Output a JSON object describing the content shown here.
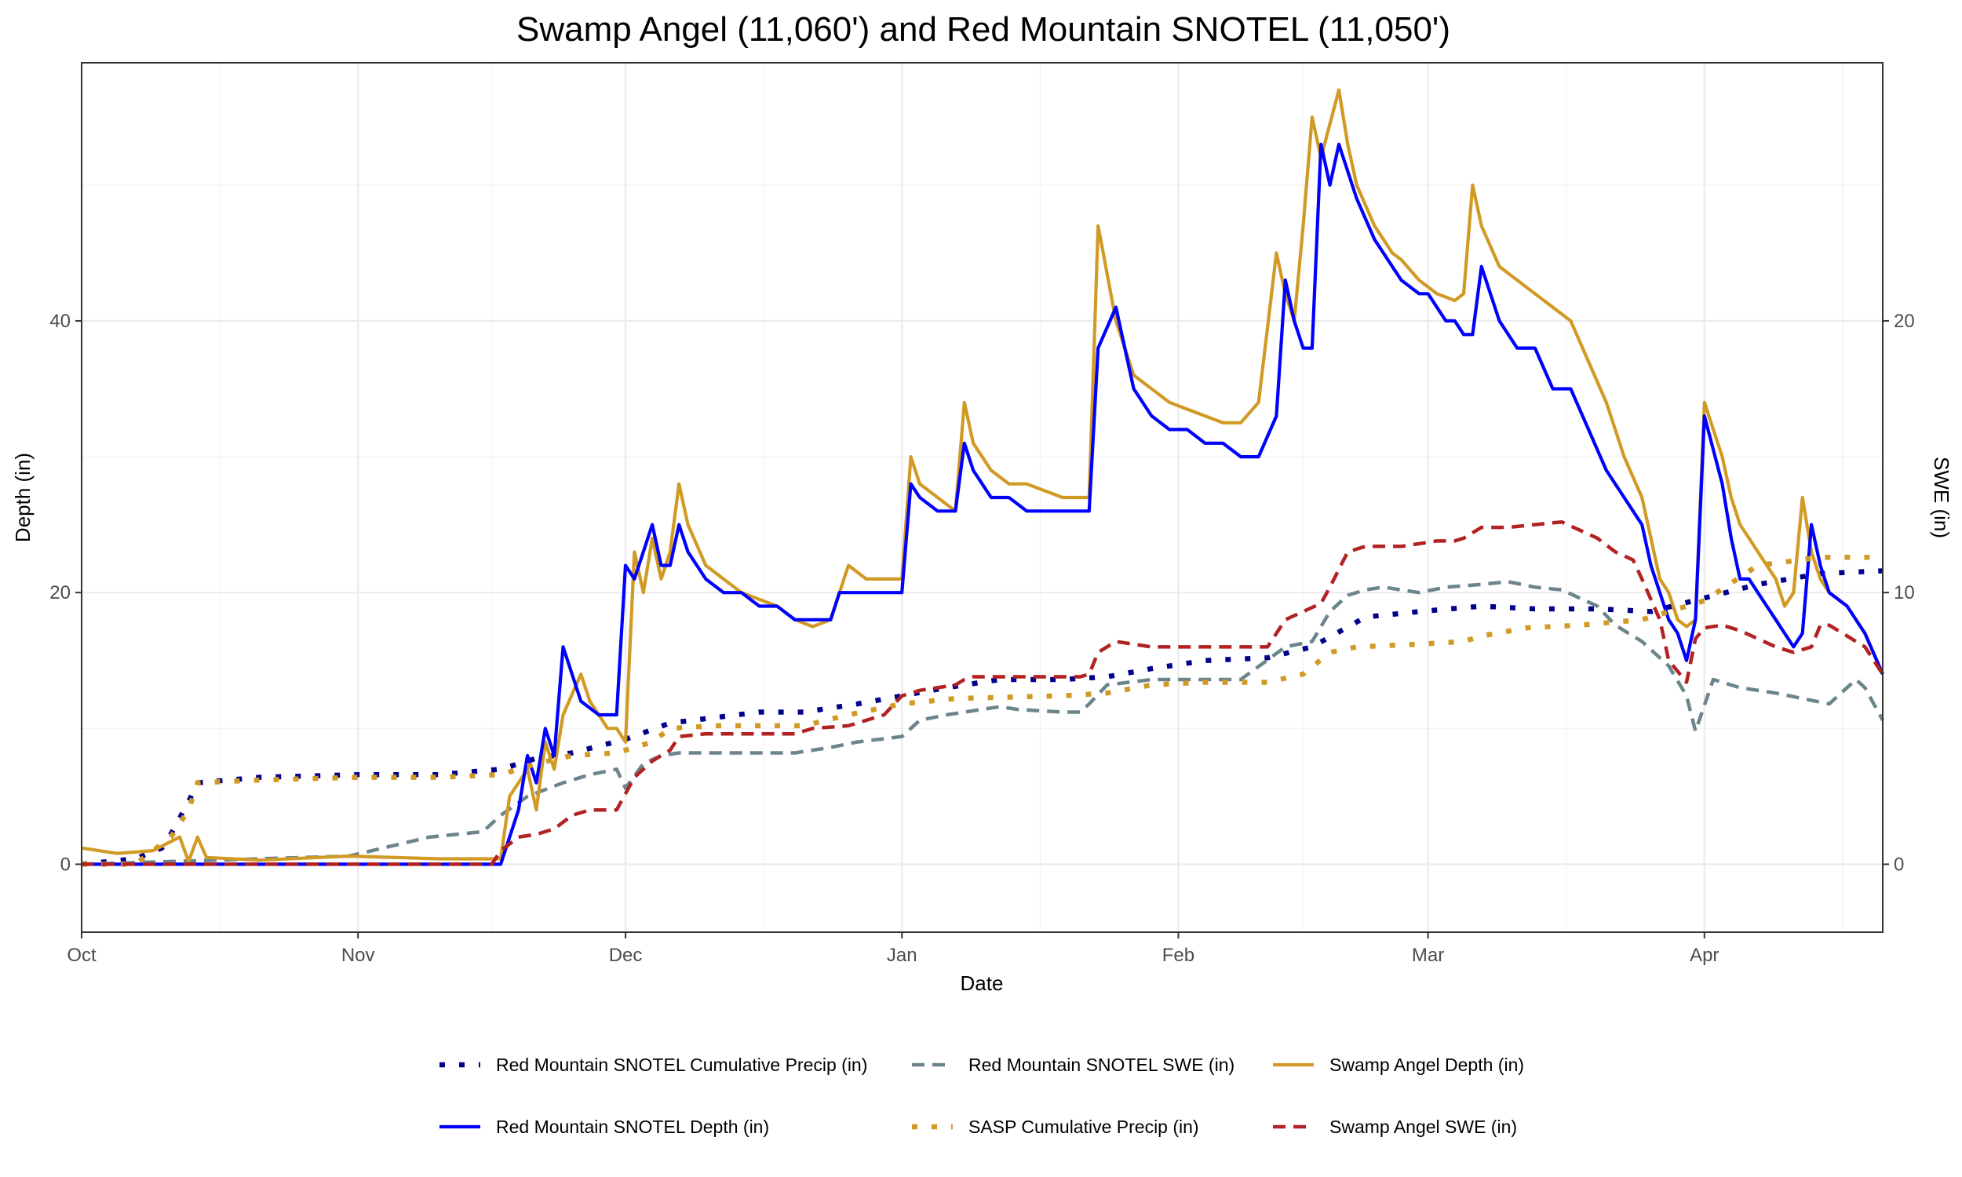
{
  "chart_data": {
    "type": "line",
    "title": "Swamp Angel (11,060') and Red Mountain SNOTEL (11,050')",
    "xlabel": "Date",
    "ylabel_left": "Depth (in)",
    "ylabel_right": "SWE (in)",
    "x_unit": "days since Oct 1",
    "xlim": [
      0,
      202
    ],
    "ylim_left": [
      -5,
      59
    ],
    "ylim_right": [
      -2.5,
      29.5
    ],
    "grid": true,
    "legend_position": "bottom",
    "x_ticks": [
      {
        "label": "Oct",
        "value": 0
      },
      {
        "label": "Nov",
        "value": 31
      },
      {
        "label": "Dec",
        "value": 61
      },
      {
        "label": "Jan",
        "value": 92
      },
      {
        "label": "Feb",
        "value": 123
      },
      {
        "label": "Mar",
        "value": 151
      },
      {
        "label": "Apr",
        "value": 182
      }
    ],
    "y_ticks_left": [
      {
        "label": "0",
        "value": 0
      },
      {
        "label": "20",
        "value": 20
      },
      {
        "label": "40",
        "value": 40
      }
    ],
    "y_ticks_right": [
      {
        "label": "0",
        "value": 0
      },
      {
        "label": "10",
        "value": 10
      },
      {
        "label": "20",
        "value": 20
      }
    ],
    "series": [
      {
        "name": "Red Mountain SNOTEL Cumulative Precip (in)",
        "axis": "right",
        "color": "#00008b",
        "dash": "dotted",
        "x": [
          0,
          6,
          9,
          10,
          12,
          13,
          20,
          31,
          40,
          47,
          51,
          55,
          61,
          66,
          71,
          76,
          81,
          87,
          92,
          97,
          103,
          110,
          115,
          120,
          126,
          133,
          138,
          144,
          150,
          157,
          163,
          170,
          176,
          182,
          188,
          195,
          202
        ],
        "y": [
          0,
          0.2,
          0.6,
          1.1,
          2.3,
          3.0,
          3.2,
          3.3,
          3.3,
          3.5,
          3.9,
          4.1,
          4.6,
          5.2,
          5.4,
          5.6,
          5.6,
          5.9,
          6.2,
          6.5,
          6.8,
          6.8,
          6.9,
          7.2,
          7.5,
          7.6,
          8.0,
          9.1,
          9.3,
          9.5,
          9.4,
          9.4,
          9.3,
          9.8,
          10.3,
          10.7,
          10.8
        ]
      },
      {
        "name": "Red Mountain SNOTEL SWE (in)",
        "axis": "right",
        "color": "#6c858c",
        "dash": "dashed",
        "x": [
          0,
          30,
          39,
          45,
          47,
          50,
          54,
          57,
          60,
          61,
          63,
          65,
          67,
          80,
          84,
          87,
          92,
          94,
          97,
          103,
          105,
          110,
          112,
          113,
          115,
          120,
          130,
          135,
          138,
          140,
          142,
          144,
          146,
          150,
          153,
          157,
          160,
          163,
          166,
          170,
          172,
          175,
          178,
          180,
          181,
          183,
          186,
          190,
          196,
          199,
          200,
          202
        ],
        "y": [
          0,
          0.3,
          1.0,
          1.2,
          1.8,
          2.5,
          3.0,
          3.3,
          3.5,
          2.8,
          3.7,
          4.0,
          4.1,
          4.1,
          4.3,
          4.5,
          4.7,
          5.3,
          5.5,
          5.8,
          5.7,
          5.6,
          5.6,
          5.9,
          6.6,
          6.8,
          6.8,
          8.0,
          8.2,
          9.3,
          9.9,
          10.1,
          10.2,
          10.0,
          10.2,
          10.3,
          10.4,
          10.2,
          10.1,
          9.5,
          8.8,
          8.2,
          7.3,
          6.2,
          4.9,
          6.8,
          6.5,
          6.3,
          5.9,
          6.8,
          6.5,
          5.3
        ]
      },
      {
        "name": "Swamp Angel Depth (in)",
        "axis": "left",
        "color": "#d19a25",
        "dash": "solid",
        "x": [
          0,
          4,
          8,
          11,
          12,
          13,
          14,
          20,
          30,
          40,
          47,
          48,
          50,
          51,
          52,
          53,
          54,
          56,
          57,
          59,
          60,
          61,
          62,
          63,
          64,
          65,
          66,
          67,
          68,
          70,
          72,
          74,
          76,
          78,
          80,
          82,
          84,
          85,
          86,
          88,
          90,
          92,
          93,
          94,
          96,
          98,
          99,
          100,
          102,
          104,
          106,
          108,
          110,
          112,
          113,
          114,
          116,
          118,
          120,
          122,
          124,
          126,
          128,
          130,
          132,
          134,
          135,
          136,
          137,
          138,
          139,
          141,
          142,
          143,
          145,
          147,
          148,
          150,
          152,
          154,
          155,
          156,
          157,
          159,
          161,
          163,
          165,
          167,
          169,
          171,
          173,
          175,
          176,
          177,
          178,
          179,
          180,
          181,
          182,
          184,
          185,
          186,
          187,
          188,
          189,
          190,
          191,
          192,
          193,
          194,
          195,
          196,
          198,
          200,
          202
        ],
        "y": [
          1.2,
          0.8,
          1.0,
          2.0,
          0.2,
          2.0,
          0.5,
          0.3,
          0.6,
          0.4,
          0.4,
          5,
          7,
          4,
          9,
          7,
          11,
          14,
          12,
          10,
          10,
          9,
          23,
          20,
          24,
          21,
          23,
          28,
          25,
          22,
          21,
          20,
          19.5,
          19,
          18,
          17.5,
          18,
          20,
          22,
          21,
          21,
          21,
          30,
          28,
          27,
          26,
          34,
          31,
          29,
          28,
          28,
          27.5,
          27,
          27,
          27,
          47,
          40,
          36,
          35,
          34,
          33.5,
          33,
          32.5,
          32.5,
          34,
          45,
          42,
          40,
          47,
          55,
          52,
          57,
          53,
          50,
          47,
          45,
          44.5,
          43,
          42,
          41.5,
          42,
          50,
          47,
          44,
          43,
          42,
          41,
          40,
          37,
          34,
          30,
          27,
          24,
          21,
          20,
          18,
          17.5,
          18,
          34,
          30,
          27,
          25,
          24,
          23,
          22,
          21,
          19,
          20,
          27,
          23,
          21,
          20,
          19,
          17,
          14
        ]
      },
      {
        "name": "Red Mountain SNOTEL Depth (in)",
        "axis": "left",
        "color": "#0000ff",
        "dash": "solid",
        "x": [
          0,
          20,
          40,
          46,
          47,
          49,
          50,
          51,
          52,
          53,
          54,
          55,
          56,
          58,
          59,
          60,
          61,
          62,
          64,
          65,
          66,
          67,
          68,
          70,
          72,
          74,
          76,
          78,
          80,
          82,
          84,
          85,
          88,
          92,
          93,
          94,
          96,
          98,
          99,
          100,
          102,
          104,
          106,
          108,
          110,
          113,
          114,
          116,
          118,
          120,
          122,
          124,
          126,
          128,
          130,
          132,
          134,
          135,
          136,
          137,
          138,
          139,
          140,
          141,
          143,
          145,
          147,
          148,
          150,
          151,
          153,
          154,
          155,
          156,
          157,
          159,
          161,
          163,
          165,
          167,
          169,
          171,
          173,
          175,
          176,
          177,
          178,
          179,
          180,
          181,
          182,
          184,
          185,
          186,
          187,
          188,
          189,
          190,
          191,
          192,
          193,
          194,
          195,
          196,
          198,
          200,
          202
        ],
        "y": [
          0,
          0,
          0,
          0,
          0,
          4,
          8,
          6,
          10,
          8,
          16,
          14,
          12,
          11,
          11,
          11,
          22,
          21,
          25,
          22,
          22,
          25,
          23,
          21,
          20,
          20,
          19,
          19,
          18,
          18,
          18,
          20,
          20,
          20,
          28,
          27,
          26,
          26,
          31,
          29,
          27,
          27,
          26,
          26,
          26,
          26,
          38,
          41,
          35,
          33,
          32,
          32,
          31,
          31,
          30,
          30,
          33,
          43,
          40,
          38,
          38,
          53,
          50,
          53,
          49,
          46,
          44,
          43,
          42,
          42,
          40,
          40,
          39,
          39,
          44,
          40,
          38,
          38,
          35,
          35,
          32,
          29,
          27,
          25,
          22,
          20,
          18,
          17,
          15,
          18,
          33,
          28,
          24,
          21,
          21,
          20,
          19,
          18,
          17,
          16,
          17,
          25,
          22,
          20,
          19,
          17,
          14
        ]
      },
      {
        "name": "SASP Cumulative Precip (in)",
        "axis": "right",
        "color": "#d19a25",
        "dash": "dotted",
        "x": [
          0,
          6,
          10,
          12,
          13,
          20,
          31,
          40,
          47,
          51,
          55,
          60,
          64,
          66,
          71,
          81,
          86,
          92,
          98,
          110,
          115,
          120,
          126,
          133,
          137,
          140,
          143,
          150,
          155,
          157,
          162,
          168,
          175,
          182,
          188,
          195,
          202
        ],
        "y": [
          0,
          0,
          1.0,
          2.0,
          3.0,
          3.1,
          3.2,
          3.2,
          3.3,
          3.7,
          4.0,
          4.1,
          4.5,
          5.0,
          5.1,
          5.1,
          5.5,
          5.9,
          6.1,
          6.2,
          6.3,
          6.6,
          6.7,
          6.7,
          7.0,
          7.8,
          8.0,
          8.1,
          8.2,
          8.4,
          8.7,
          8.8,
          9.0,
          9.7,
          11.0,
          11.3,
          11.3
        ]
      },
      {
        "name": "Swamp Angel SWE (in)",
        "axis": "right",
        "color": "#b22222",
        "dash": "dashed",
        "x": [
          0,
          30,
          46,
          47,
          49,
          51,
          53,
          55,
          57,
          60,
          61,
          62,
          64,
          66,
          67,
          70,
          80,
          82,
          86,
          90,
          92,
          94,
          98,
          99,
          100,
          102,
          108,
          112,
          113,
          114,
          116,
          118,
          120,
          126,
          131,
          133,
          135,
          137,
          139,
          140,
          142,
          144,
          148,
          150,
          152,
          154,
          155,
          157,
          160,
          163,
          166,
          170,
          172,
          174,
          175,
          177,
          178,
          179,
          180,
          181,
          182,
          184,
          186,
          188,
          190,
          192,
          194,
          195,
          196,
          198,
          200,
          202
        ],
        "y": [
          0,
          0,
          0,
          0.5,
          1.0,
          1.1,
          1.3,
          1.8,
          2.0,
          2.0,
          2.6,
          3.2,
          3.8,
          4.2,
          4.7,
          4.8,
          4.8,
          5.0,
          5.1,
          5.5,
          6.2,
          6.4,
          6.6,
          6.8,
          6.9,
          6.9,
          6.9,
          6.9,
          7.0,
          7.8,
          8.2,
          8.1,
          8.0,
          8.0,
          8.0,
          8.0,
          9.0,
          9.3,
          9.6,
          10.2,
          11.5,
          11.7,
          11.7,
          11.8,
          11.9,
          11.9,
          12.0,
          12.4,
          12.4,
          12.5,
          12.6,
          12.0,
          11.5,
          11.2,
          10.5,
          9.0,
          7.5,
          7.1,
          6.7,
          8.3,
          8.7,
          8.8,
          8.6,
          8.3,
          8.0,
          7.8,
          8.0,
          8.8,
          8.8,
          8.4,
          8.0,
          7.0
        ]
      }
    ]
  }
}
